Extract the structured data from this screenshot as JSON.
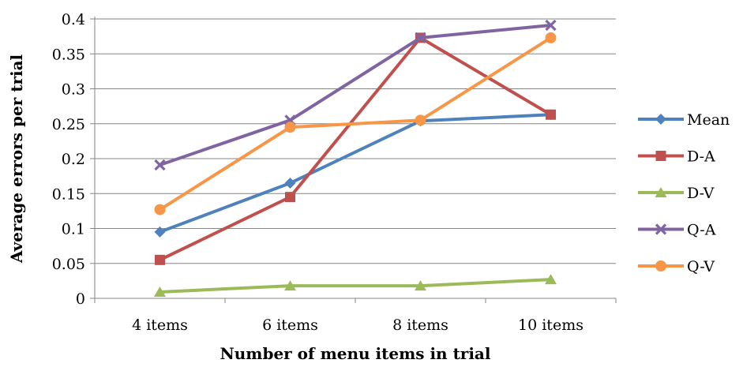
{
  "chart_data": {
    "type": "line",
    "title": "",
    "xlabel": "Number of menu items in trial",
    "ylabel": "Average errors per trial",
    "categories": [
      "4 items",
      "6 items",
      "8 items",
      "10 items"
    ],
    "ylim": [
      0,
      0.4
    ],
    "ytick_labels": [
      "0",
      "0.05",
      "0.1",
      "0.15",
      "0.2",
      "0.25",
      "0.3",
      "0.35",
      "0.4"
    ],
    "grid": true,
    "legend_position": "right",
    "series": [
      {
        "name": "Mean",
        "values": [
          0.095,
          0.165,
          0.254,
          0.263
        ],
        "color": "#4f81bd",
        "marker": "diamond"
      },
      {
        "name": "D-A",
        "values": [
          0.055,
          0.145,
          0.373,
          0.263
        ],
        "color": "#c0504d",
        "marker": "square"
      },
      {
        "name": "D-V",
        "values": [
          0.009,
          0.018,
          0.018,
          0.027
        ],
        "color": "#9bbb59",
        "marker": "triangle"
      },
      {
        "name": "Q-A",
        "values": [
          0.191,
          0.255,
          0.373,
          0.391
        ],
        "color": "#8064a2",
        "marker": "x"
      },
      {
        "name": "Q-V",
        "values": [
          0.127,
          0.245,
          0.255,
          0.373
        ],
        "color": "#f79646",
        "marker": "circle"
      }
    ]
  }
}
